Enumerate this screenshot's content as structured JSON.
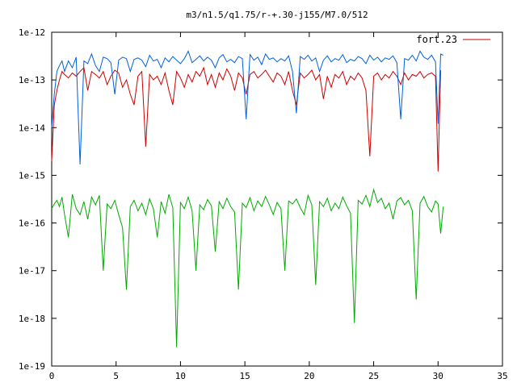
{
  "chart_data": {
    "type": "line",
    "title": "m3/n1.5/q1.75/r-+.30-j155/M7.0/512",
    "xlabel": "",
    "ylabel": "",
    "xlim": [
      0,
      35
    ],
    "ylim": [
      1e-19,
      1e-12
    ],
    "y_scale": "log",
    "grid": false,
    "legend_position": "top-right",
    "x_ticks": [
      0,
      5,
      10,
      15,
      20,
      25,
      30,
      35
    ],
    "x_tick_labels": [
      "0",
      "5",
      "10",
      "15",
      "20",
      "25",
      "30",
      "35"
    ],
    "y_ticks": [
      1e-12,
      1e-13,
      1e-14,
      1e-15,
      1e-16,
      1e-17,
      1e-18,
      1e-19
    ],
    "y_tick_labels": [
      "1e-12",
      "1e-13",
      "1e-14",
      "1e-15",
      "1e-16",
      "1e-17",
      "1e-18",
      "1e-19"
    ],
    "series": [
      {
        "name": "fort.23",
        "color": "#cc0000",
        "x": [
          0.0,
          0.2,
          0.4,
          0.6,
          0.8,
          1.0,
          1.3,
          1.6,
          1.9,
          2.2,
          2.5,
          2.8,
          3.1,
          3.4,
          3.7,
          4.0,
          4.3,
          4.6,
          4.9,
          5.2,
          5.5,
          5.8,
          6.1,
          6.4,
          6.7,
          7.0,
          7.3,
          7.6,
          7.9,
          8.2,
          8.5,
          8.8,
          9.1,
          9.4,
          9.7,
          10.0,
          10.3,
          10.6,
          10.9,
          11.2,
          11.5,
          11.8,
          12.1,
          12.4,
          12.7,
          13.0,
          13.3,
          13.6,
          13.9,
          14.2,
          14.5,
          14.8,
          15.1,
          15.4,
          15.7,
          16.0,
          16.3,
          16.6,
          16.9,
          17.2,
          17.5,
          17.8,
          18.1,
          18.4,
          18.7,
          19.0,
          19.3,
          19.6,
          19.9,
          20.2,
          20.5,
          20.8,
          21.1,
          21.4,
          21.7,
          22.0,
          22.3,
          22.6,
          22.9,
          23.2,
          23.5,
          23.8,
          24.1,
          24.4,
          24.7,
          25.0,
          25.3,
          25.6,
          25.9,
          26.2,
          26.5,
          26.8,
          27.1,
          27.4,
          27.7,
          28.0,
          28.3,
          28.6,
          28.9,
          29.2,
          29.5,
          29.8,
          30.0,
          30.2
        ],
        "y": [
          2e-15,
          3e-14,
          6e-14,
          1e-13,
          1.5e-13,
          1.3e-13,
          1.1e-13,
          1.4e-13,
          1.2e-13,
          1.5e-13,
          1.8e-13,
          6e-14,
          1.5e-13,
          1.3e-13,
          1.1e-13,
          1.5e-13,
          8e-14,
          1.2e-13,
          1.6e-13,
          1.4e-13,
          7e-14,
          1e-13,
          5e-14,
          3e-14,
          1.2e-13,
          1.5e-13,
          4e-15,
          1.3e-13,
          1e-13,
          1.2e-13,
          8e-14,
          1.4e-13,
          6e-14,
          3e-14,
          1.5e-13,
          1.1e-13,
          7e-14,
          1.3e-13,
          9e-14,
          1.5e-13,
          1.2e-13,
          1.8e-13,
          8e-14,
          1.3e-13,
          7e-14,
          1.4e-13,
          1e-13,
          1.7e-13,
          1.2e-13,
          6e-14,
          1.4e-13,
          1.1e-13,
          5e-14,
          1.3e-13,
          1.5e-13,
          1.1e-13,
          1.3e-13,
          1.6e-13,
          1.2e-13,
          9e-14,
          1.4e-13,
          1.2e-13,
          8e-14,
          1.5e-13,
          6e-14,
          3e-14,
          1.4e-13,
          1.1e-13,
          1.3e-13,
          1.6e-13,
          1e-13,
          1.3e-13,
          4e-14,
          1.2e-13,
          7e-14,
          1.3e-13,
          1.1e-13,
          1.5e-13,
          8e-14,
          1.2e-13,
          1e-13,
          1.4e-13,
          1.1e-13,
          6e-14,
          2.5e-15,
          1.2e-13,
          1.4e-13,
          1e-13,
          1.3e-13,
          1.1e-13,
          1.5e-13,
          1.2e-13,
          8e-14,
          1.4e-13,
          1e-13,
          1.3e-13,
          1.2e-13,
          1.5e-13,
          1.1e-13,
          1.3e-13,
          1.4e-13,
          1.2e-13,
          1.2e-15,
          1.6e-13
        ]
      },
      {
        "name": "",
        "color": "#0060dd",
        "x": [
          0.0,
          0.2,
          0.4,
          0.6,
          0.8,
          1.0,
          1.3,
          1.6,
          1.9,
          2.2,
          2.5,
          2.8,
          3.1,
          3.4,
          3.7,
          4.0,
          4.3,
          4.6,
          4.9,
          5.2,
          5.5,
          5.8,
          6.1,
          6.4,
          6.7,
          7.0,
          7.3,
          7.6,
          7.9,
          8.2,
          8.5,
          8.8,
          9.1,
          9.4,
          9.7,
          10.0,
          10.3,
          10.6,
          10.9,
          11.2,
          11.5,
          11.8,
          12.1,
          12.4,
          12.7,
          13.0,
          13.3,
          13.6,
          13.9,
          14.2,
          14.5,
          14.8,
          15.1,
          15.4,
          15.7,
          16.0,
          16.3,
          16.6,
          16.9,
          17.2,
          17.5,
          17.8,
          18.1,
          18.4,
          18.7,
          19.0,
          19.3,
          19.6,
          19.9,
          20.2,
          20.5,
          20.8,
          21.1,
          21.4,
          21.7,
          22.0,
          22.3,
          22.6,
          22.9,
          23.2,
          23.5,
          23.8,
          24.1,
          24.4,
          24.7,
          25.0,
          25.3,
          25.6,
          25.9,
          26.2,
          26.5,
          26.8,
          27.1,
          27.4,
          27.7,
          28.0,
          28.3,
          28.6,
          28.9,
          29.2,
          29.5,
          29.8,
          30.0,
          30.2,
          30.4
        ],
        "y": [
          1e-14,
          5e-14,
          1.5e-13,
          2e-13,
          2.5e-13,
          1.5e-13,
          2.5e-13,
          1.8e-13,
          3e-13,
          1.7e-15,
          2.5e-13,
          2.2e-13,
          3.5e-13,
          2e-13,
          1.5e-13,
          3e-13,
          2.8e-13,
          2.3e-13,
          5e-14,
          2.6e-13,
          3e-13,
          2.8e-13,
          1.5e-13,
          2.7e-13,
          2.9e-13,
          2.6e-13,
          1.9e-13,
          3.3e-13,
          2.5e-13,
          2.7e-13,
          1.8e-13,
          2.9e-13,
          2.4e-13,
          3.1e-13,
          2.6e-13,
          2.2e-13,
          2.8e-13,
          4e-13,
          2.3e-13,
          2.7e-13,
          3.2e-13,
          2.5e-13,
          3e-13,
          2.6e-13,
          1.8e-13,
          2.9e-13,
          3.4e-13,
          2.4e-13,
          2.7e-13,
          2.3e-13,
          3.1e-13,
          2.8e-13,
          1.5e-14,
          3.4e-13,
          2.6e-13,
          3e-13,
          2.1e-13,
          3.5e-13,
          2.7e-13,
          2.9e-13,
          2.4e-13,
          2.8e-13,
          2.5e-13,
          3.2e-13,
          1.5e-13,
          2e-14,
          3.1e-13,
          2.7e-13,
          3.3e-13,
          2.5e-13,
          2.9e-13,
          1.5e-13,
          2.6e-13,
          3.2e-13,
          2.4e-13,
          2.8e-13,
          2.6e-13,
          3.4e-13,
          2.3e-13,
          2.7e-13,
          2.5e-13,
          3.1e-13,
          2.8e-13,
          2.2e-13,
          3.3e-13,
          2.6e-13,
          3e-13,
          2.4e-13,
          2.9e-13,
          2.7e-13,
          3.2e-13,
          2.3e-13,
          1.5e-14,
          2.8e-13,
          2.6e-13,
          3.3e-13,
          2.5e-13,
          4e-13,
          3e-13,
          2.7e-13,
          3.3e-13,
          2.4e-13,
          1.2e-14,
          3.5e-13,
          3.3e-13
        ]
      },
      {
        "name": "",
        "color": "#00aa00",
        "x": [
          0.0,
          0.2,
          0.4,
          0.6,
          0.8,
          1.0,
          1.3,
          1.6,
          1.9,
          2.2,
          2.5,
          2.8,
          3.1,
          3.4,
          3.7,
          4.0,
          4.3,
          4.6,
          4.9,
          5.2,
          5.5,
          5.8,
          6.1,
          6.4,
          6.7,
          7.0,
          7.3,
          7.6,
          7.9,
          8.2,
          8.5,
          8.8,
          9.1,
          9.4,
          9.7,
          10.0,
          10.3,
          10.6,
          10.9,
          11.2,
          11.5,
          11.8,
          12.1,
          12.4,
          12.7,
          13.0,
          13.3,
          13.6,
          13.9,
          14.2,
          14.5,
          14.8,
          15.1,
          15.4,
          15.7,
          16.0,
          16.3,
          16.6,
          16.9,
          17.2,
          17.5,
          17.8,
          18.1,
          18.4,
          18.7,
          19.0,
          19.3,
          19.6,
          19.9,
          20.2,
          20.5,
          20.8,
          21.1,
          21.4,
          21.7,
          22.0,
          22.3,
          22.6,
          22.9,
          23.2,
          23.5,
          23.8,
          24.1,
          24.4,
          24.7,
          25.0,
          25.3,
          25.6,
          25.9,
          26.2,
          26.5,
          26.8,
          27.1,
          27.4,
          27.7,
          28.0,
          28.3,
          28.6,
          28.9,
          29.2,
          29.5,
          29.8,
          30.0,
          30.2,
          30.4
        ],
        "y": [
          2e-16,
          2.5e-16,
          3e-16,
          2.2e-16,
          3.5e-16,
          1.5e-16,
          5e-17,
          4e-16,
          2e-16,
          1.5e-16,
          2.8e-16,
          1.2e-16,
          3.5e-16,
          2.4e-16,
          3.8e-16,
          1e-17,
          2.5e-16,
          2e-16,
          3e-16,
          1.5e-16,
          8e-17,
          4e-18,
          2.2e-16,
          3e-16,
          1.8e-16,
          2.6e-16,
          1.5e-16,
          3.2e-16,
          2e-16,
          5e-17,
          2.8e-16,
          1.6e-16,
          4e-16,
          2.1e-16,
          2.5e-19,
          2.7e-16,
          2e-16,
          3.5e-16,
          1.8e-16,
          1e-17,
          2.4e-16,
          1.9e-16,
          3.1e-16,
          2.3e-16,
          2.5e-17,
          2.8e-16,
          2e-16,
          3.3e-16,
          2.2e-16,
          1.7e-16,
          4e-18,
          2.6e-16,
          2.1e-16,
          3.4e-16,
          1.8e-16,
          2.9e-16,
          2.2e-16,
          3.6e-16,
          2.4e-16,
          1.5e-16,
          2.7e-16,
          2e-16,
          1e-17,
          2.9e-16,
          2.5e-16,
          3.2e-16,
          2.1e-16,
          1.5e-16,
          3.8e-16,
          2.4e-16,
          5e-18,
          2.8e-16,
          2.2e-16,
          3.3e-16,
          1.8e-16,
          2.6e-16,
          2e-16,
          3.5e-16,
          2.3e-16,
          1.6e-16,
          8e-19,
          3e-16,
          2.5e-16,
          3.8e-16,
          2.2e-16,
          5e-16,
          2.7e-16,
          3.3e-16,
          2e-16,
          2.6e-16,
          1.2e-16,
          2.9e-16,
          3.4e-16,
          2.4e-16,
          3e-16,
          1.8e-16,
          2.5e-18,
          2.6e-16,
          3.6e-16,
          2.2e-16,
          1.7e-16,
          2.9e-16,
          2.5e-16,
          6e-17,
          2.2e-16
        ]
      }
    ]
  }
}
